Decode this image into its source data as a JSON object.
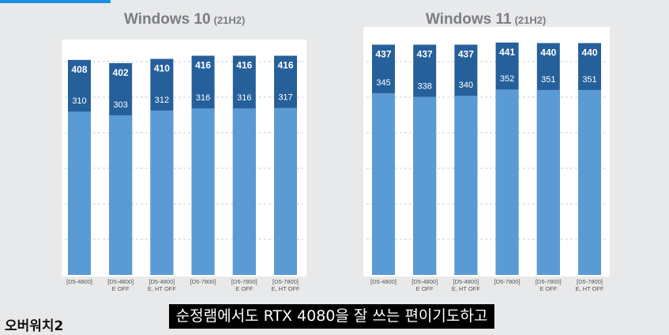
{
  "chart_data": [
    {
      "type": "bar",
      "title": "Windows 10",
      "subtitle": "(21H2)",
      "categories": [
        "[D5-4800]",
        "[D5-4800]\nE OFF",
        "[D5-4800]\nE, HT OFF",
        "[D5-7800]",
        "[D5-7800]\nE OFF",
        "[D5-7800]\nE, HT OFF"
      ],
      "series": [
        {
          "values": [
            408,
            402,
            410,
            416,
            416,
            416
          ],
          "color": "#25609b"
        },
        {
          "values": [
            310,
            303,
            312,
            316,
            316,
            317
          ],
          "color": "#5b9bd5"
        }
      ],
      "ylim": [
        0,
        480
      ],
      "grid": true,
      "legend": "none"
    },
    {
      "type": "bar",
      "title": "Windows 11",
      "subtitle": "(21H2)",
      "categories": [
        "[D5-4800]",
        "[D5-4800]\nE OFF",
        "[D5-4800]\nE, HT OFF",
        "[D5-7800]",
        "[D5-7800]\nE OFF",
        "[D5-7800]\nE, HT OFF"
      ],
      "series": [
        {
          "values": [
            437,
            437,
            437,
            441,
            440,
            440
          ],
          "color": "#25609b"
        },
        {
          "values": [
            345,
            338,
            340,
            352,
            351,
            351
          ],
          "color": "#5b9bd5"
        }
      ],
      "ylim": [
        0,
        480
      ],
      "grid": true,
      "legend": "none"
    }
  ],
  "caption": "순정램에서도 RTX 4080을 잘 쓰는 편이기도하고",
  "watermark": "오버워치2",
  "colors": {
    "background": "#e8e9ea",
    "accent": "#1d8fe0",
    "dark_bar": "#25609b",
    "light_bar": "#5b9bd5"
  }
}
